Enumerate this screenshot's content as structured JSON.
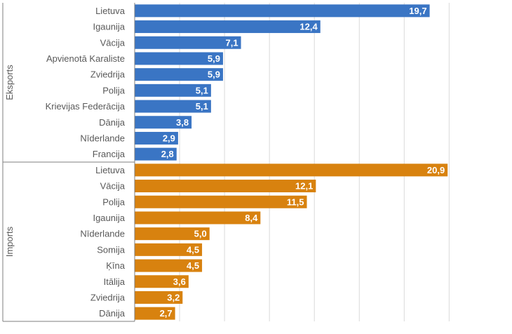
{
  "chart_data": {
    "type": "bar",
    "orientation": "horizontal",
    "title": "",
    "xlabel": "",
    "ylabel": "",
    "xlim": [
      0,
      22
    ],
    "grid": true,
    "legend": "none",
    "groups": [
      {
        "name": "Eksports",
        "color": "#3a75c4",
        "categories": [
          "Lietuva",
          "Igaunija",
          "Vācija",
          "Apvienotā Karaliste",
          "Zviedrija",
          "Polija",
          "Krievijas Federācija",
          "Dānija",
          "Nīderlande",
          "Francija"
        ],
        "values": [
          19.7,
          12.4,
          7.1,
          5.9,
          5.9,
          5.1,
          5.1,
          3.8,
          2.9,
          2.8
        ],
        "value_labels": [
          "19,7",
          "12,4",
          "7,1",
          "5,9",
          "5,9",
          "5,1",
          "5,1",
          "3,8",
          "2,9",
          "2,8"
        ]
      },
      {
        "name": "Imports",
        "color": "#d8820f",
        "categories": [
          "Lietuva",
          "Vācija",
          "Polija",
          "Igaunija",
          "Nīderlande",
          "Somija",
          "Ķīna",
          "Itālija",
          "Zviedrija",
          "Dānija"
        ],
        "values": [
          20.9,
          12.1,
          11.5,
          8.4,
          5.0,
          4.5,
          4.5,
          3.6,
          3.2,
          2.7
        ],
        "value_labels": [
          "20,9",
          "12,1",
          "11,5",
          "8,4",
          "5,0",
          "4,5",
          "4,5",
          "3,6",
          "3,2",
          "2,7"
        ]
      }
    ]
  }
}
